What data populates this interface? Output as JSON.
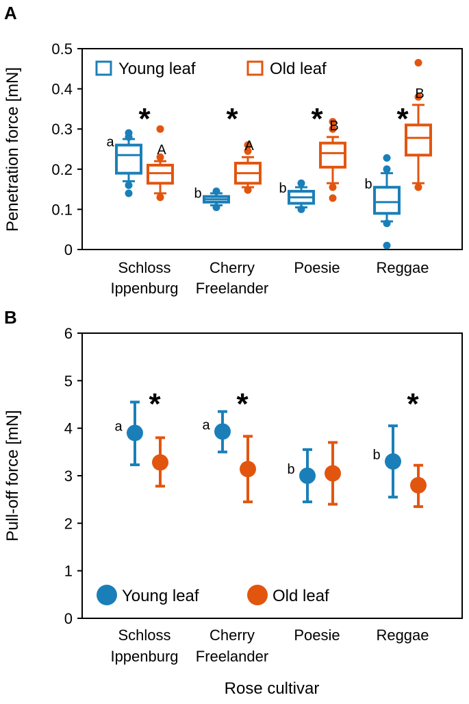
{
  "colors": {
    "young": "#1a7fb8",
    "old": "#e2550f"
  },
  "xlabel": "Rose cultivar",
  "chart_data": [
    {
      "panel": "A",
      "type": "box",
      "ylabel": "Penetration force [mN]",
      "ylim": [
        0,
        0.5
      ],
      "yticks": [
        "0",
        "0.1",
        "0.2",
        "0.3",
        "0.4",
        "0.5"
      ],
      "ytick_values": [
        0,
        0.1,
        0.2,
        0.3,
        0.4,
        0.5
      ],
      "categories": [
        [
          "Schloss",
          "Ippenburg"
        ],
        [
          "Cherry",
          "Freelander"
        ],
        [
          "Poesie",
          ""
        ],
        [
          "Reggae",
          ""
        ]
      ],
      "legend": [
        "Young leaf",
        "Old leaf"
      ],
      "series": [
        {
          "name": "Young leaf",
          "key": "young",
          "boxes": [
            {
              "q1": 0.19,
              "median": 0.235,
              "q3": 0.26,
              "whislo": 0.17,
              "whishi": 0.275,
              "fliers": [
                0.16,
                0.14,
                0.28,
                0.29
              ]
            },
            {
              "q1": 0.118,
              "median": 0.125,
              "q3": 0.132,
              "whislo": 0.11,
              "whishi": 0.14,
              "fliers": [
                0.105,
                0.145
              ]
            },
            {
              "q1": 0.115,
              "median": 0.13,
              "q3": 0.145,
              "whislo": 0.105,
              "whishi": 0.155,
              "fliers": [
                0.1,
                0.165
              ]
            },
            {
              "q1": 0.09,
              "median": 0.118,
              "q3": 0.155,
              "whislo": 0.07,
              "whishi": 0.19,
              "fliers": [
                0.065,
                0.01,
                0.2,
                0.228
              ]
            }
          ],
          "letters": [
            "a",
            "b",
            "b",
            "b"
          ]
        },
        {
          "name": "Old leaf",
          "key": "old",
          "boxes": [
            {
              "q1": 0.165,
              "median": 0.19,
              "q3": 0.21,
              "whislo": 0.14,
              "whishi": 0.22,
              "fliers": [
                0.13,
                0.23,
                0.3
              ]
            },
            {
              "q1": 0.165,
              "median": 0.19,
              "q3": 0.215,
              "whislo": 0.155,
              "whishi": 0.23,
              "fliers": [
                0.148,
                0.245,
                0.26
              ]
            },
            {
              "q1": 0.205,
              "median": 0.24,
              "q3": 0.265,
              "whislo": 0.165,
              "whishi": 0.28,
              "fliers": [
                0.155,
                0.128,
                0.3,
                0.318
              ]
            },
            {
              "q1": 0.235,
              "median": 0.278,
              "q3": 0.31,
              "whislo": 0.165,
              "whishi": 0.36,
              "fliers": [
                0.155,
                0.38,
                0.465
              ]
            }
          ],
          "letters": [
            "A",
            "A",
            "B",
            "B"
          ]
        }
      ],
      "significant": [
        "*",
        "*",
        "*",
        "*"
      ]
    },
    {
      "panel": "B",
      "type": "errorbar",
      "ylabel": "Pull-off force [mN]",
      "ylim": [
        0,
        6
      ],
      "yticks": [
        "0",
        "1",
        "2",
        "3",
        "4",
        "5",
        "6"
      ],
      "ytick_values": [
        0,
        1,
        2,
        3,
        4,
        5,
        6
      ],
      "categories": [
        [
          "Schloss",
          "Ippenburg"
        ],
        [
          "Cherry",
          "Freelander"
        ],
        [
          "Poesie",
          ""
        ],
        [
          "Reggae",
          ""
        ]
      ],
      "legend": [
        "Young leaf",
        "Old leaf"
      ],
      "series": [
        {
          "name": "Young leaf",
          "key": "young",
          "points": [
            {
              "mean": 3.9,
              "low": 3.23,
              "high": 4.55
            },
            {
              "mean": 3.93,
              "low": 3.5,
              "high": 4.35
            },
            {
              "mean": 3.0,
              "low": 2.45,
              "high": 3.55
            },
            {
              "mean": 3.3,
              "low": 2.55,
              "high": 4.05
            }
          ],
          "letters": [
            "a",
            "a",
            "b",
            "b"
          ]
        },
        {
          "name": "Old leaf",
          "key": "old",
          "points": [
            {
              "mean": 3.28,
              "low": 2.78,
              "high": 3.8
            },
            {
              "mean": 3.14,
              "low": 2.45,
              "high": 3.83
            },
            {
              "mean": 3.05,
              "low": 2.4,
              "high": 3.7
            },
            {
              "mean": 2.8,
              "low": 2.35,
              "high": 3.22
            }
          ],
          "letters": [
            "",
            "",
            "",
            ""
          ]
        }
      ],
      "significant": [
        "*",
        "*",
        "",
        "*"
      ]
    }
  ]
}
